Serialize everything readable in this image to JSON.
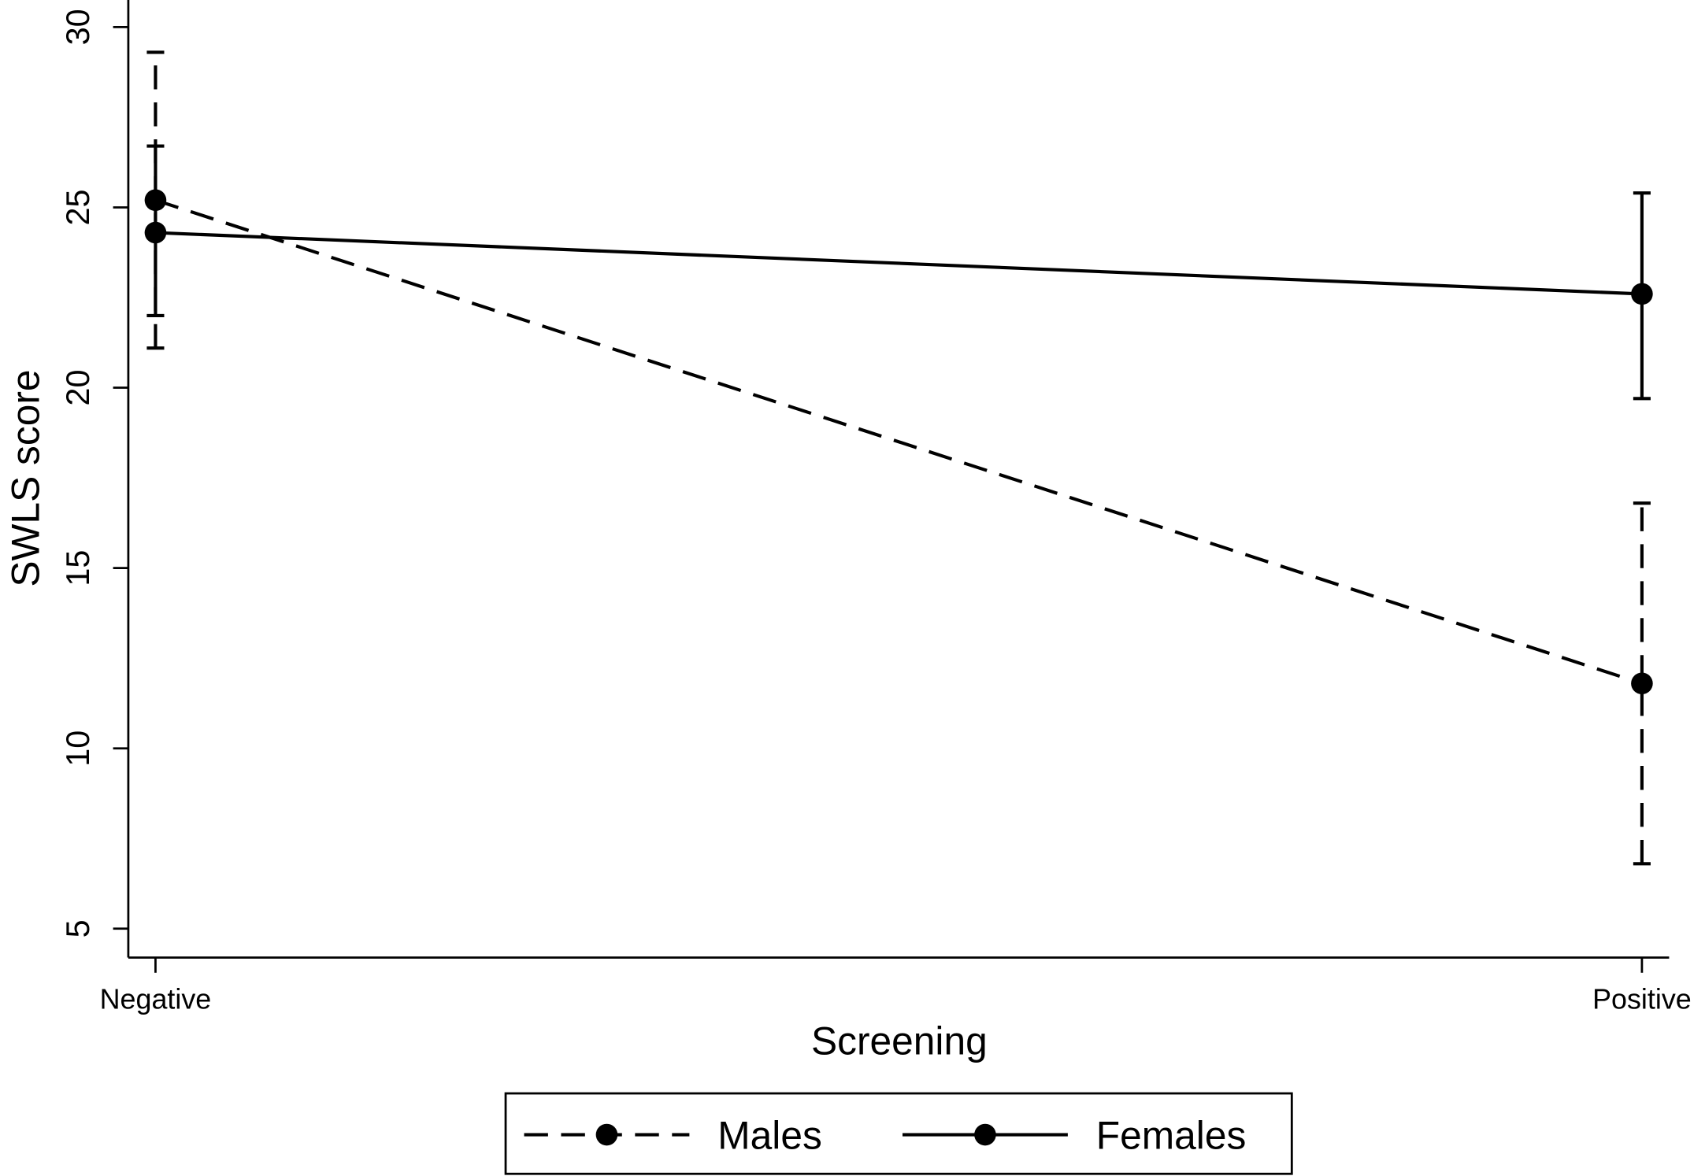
{
  "chart_data": {
    "type": "line",
    "x_label": "Screening",
    "y_label": "SWLS score",
    "categories": [
      "Negative",
      "Positive"
    ],
    "series": [
      {
        "name": "Males",
        "color": "#000000",
        "line_style": "dashed",
        "values": [
          25.2,
          11.8
        ],
        "lower": [
          21.1,
          6.8
        ],
        "upper": [
          29.3,
          16.8
        ]
      },
      {
        "name": "Females",
        "color": "#000000",
        "line_style": "solid",
        "values": [
          24.3,
          22.6
        ],
        "lower": [
          22.0,
          19.7
        ],
        "upper": [
          26.7,
          25.4
        ]
      }
    ],
    "ylim": [
      4.2,
      30.75
    ],
    "yticks": [
      5,
      10,
      15,
      20,
      25,
      30
    ],
    "grid": false,
    "legend": "bottom"
  }
}
